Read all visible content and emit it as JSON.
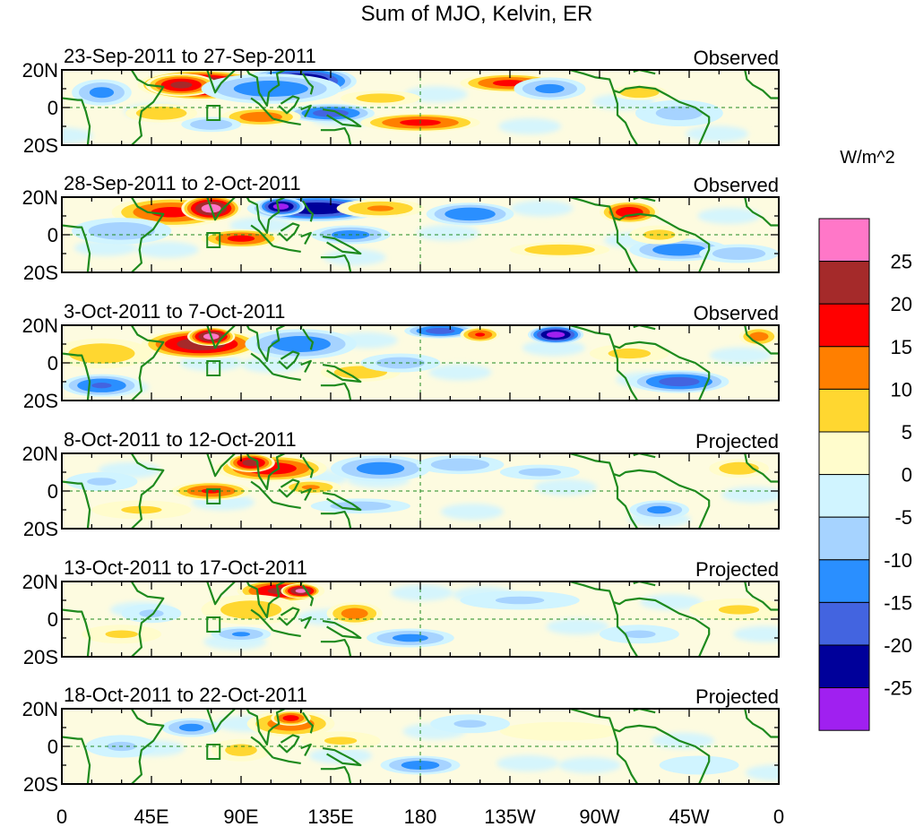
{
  "title": "Sum of MJO, Kelvin, ER",
  "panels": [
    {
      "date_range": "23-Sep-2011 to 27-Sep-2011",
      "status": "Observed"
    },
    {
      "date_range": "28-Sep-2011 to 2-Oct-2011",
      "status": "Observed"
    },
    {
      "date_range": "3-Oct-2011 to 7-Oct-2011",
      "status": "Observed"
    },
    {
      "date_range": "8-Oct-2011 to 12-Oct-2011",
      "status": "Projected"
    },
    {
      "date_range": "13-Oct-2011 to 17-Oct-2011",
      "status": "Projected"
    },
    {
      "date_range": "18-Oct-2011 to 22-Oct-2011",
      "status": "Projected"
    }
  ],
  "lat_labels": [
    "20N",
    "0",
    "20S"
  ],
  "lon_labels": [
    "0",
    "45E",
    "90E",
    "135E",
    "180",
    "135W",
    "90W",
    "45W",
    "0"
  ],
  "colorbar": {
    "units": "W/m^2",
    "levels": [
      "25",
      "20",
      "15",
      "10",
      "5",
      "0",
      "-5",
      "-10",
      "-15",
      "-20",
      "-25"
    ],
    "colors": [
      "#ff77c8",
      "#a52a2a",
      "#ff0000",
      "#ff7f00",
      "#ffd730",
      "#fffccc",
      "#d0f4ff",
      "#a6d3ff",
      "#2a8fff",
      "#4364e0",
      "#00009a",
      "#a020f0"
    ]
  },
  "map_colors": {
    "coast": "#1e8a1e",
    "frame": "#000000"
  },
  "anomalies": [
    [
      {
        "lon": 70,
        "lat": 12,
        "rx": 32,
        "ry": 8,
        "v": 28
      },
      {
        "lon": 60,
        "lat": 12,
        "rx": 18,
        "ry": 6,
        "v": 22
      },
      {
        "lon": 120,
        "lat": 14,
        "rx": 28,
        "ry": 8,
        "v": -27
      },
      {
        "lon": 105,
        "lat": 10,
        "rx": 35,
        "ry": 8,
        "v": -14
      },
      {
        "lon": 135,
        "lat": -3,
        "rx": 22,
        "ry": 5,
        "v": -18
      },
      {
        "lon": 180,
        "lat": -8,
        "rx": 30,
        "ry": 5,
        "v": 17
      },
      {
        "lon": 225,
        "lat": 13,
        "rx": 25,
        "ry": 5,
        "v": 17
      },
      {
        "lon": 245,
        "lat": 10,
        "rx": 18,
        "ry": 6,
        "v": -12
      },
      {
        "lon": 290,
        "lat": 8,
        "rx": 14,
        "ry": 4,
        "v": 10
      },
      {
        "lon": 50,
        "lat": -3,
        "rx": 18,
        "ry": 5,
        "v": 10
      },
      {
        "lon": 20,
        "lat": 8,
        "rx": 15,
        "ry": 7,
        "v": -12
      },
      {
        "lon": 100,
        "lat": -5,
        "rx": 20,
        "ry": 5,
        "v": 14
      },
      {
        "lon": 75,
        "lat": -9,
        "rx": 15,
        "ry": 4,
        "v": -10
      },
      {
        "lon": 310,
        "lat": -3,
        "rx": 22,
        "ry": 7,
        "v": -7
      },
      {
        "lon": 160,
        "lat": 5,
        "rx": 20,
        "ry": 4,
        "v": 8
      }
    ],
    [
      {
        "lon": 55,
        "lat": 12,
        "rx": 30,
        "ry": 8,
        "v": 17
      },
      {
        "lon": 75,
        "lat": 14,
        "rx": 15,
        "ry": 7,
        "v": 28
      },
      {
        "lon": 128,
        "lat": 14,
        "rx": 35,
        "ry": 7,
        "v": -25
      },
      {
        "lon": 110,
        "lat": 15,
        "rx": 12,
        "ry": 5,
        "v": -28
      },
      {
        "lon": 160,
        "lat": 14,
        "rx": 22,
        "ry": 5,
        "v": 11
      },
      {
        "lon": 205,
        "lat": 11,
        "rx": 22,
        "ry": 6,
        "v": -15
      },
      {
        "lon": 285,
        "lat": 12,
        "rx": 15,
        "ry": 6,
        "v": 19
      },
      {
        "lon": 250,
        "lat": -8,
        "rx": 25,
        "ry": 4,
        "v": 10
      },
      {
        "lon": 90,
        "lat": -2,
        "rx": 20,
        "ry": 5,
        "v": 17
      },
      {
        "lon": 145,
        "lat": 0,
        "rx": 20,
        "ry": 5,
        "v": -13
      },
      {
        "lon": 30,
        "lat": 2,
        "rx": 25,
        "ry": 7,
        "v": -9
      },
      {
        "lon": 310,
        "lat": -8,
        "rx": 25,
        "ry": 6,
        "v": -14
      },
      {
        "lon": 340,
        "lat": -10,
        "rx": 20,
        "ry": 5,
        "v": -9
      },
      {
        "lon": 300,
        "lat": 0,
        "rx": 15,
        "ry": 5,
        "v": 7
      }
    ],
    [
      {
        "lon": 70,
        "lat": 10,
        "rx": 30,
        "ry": 8,
        "v": 24
      },
      {
        "lon": 75,
        "lat": 14,
        "rx": 12,
        "ry": 5,
        "v": 28
      },
      {
        "lon": 120,
        "lat": 10,
        "rx": 28,
        "ry": 8,
        "v": -14
      },
      {
        "lon": 190,
        "lat": 17,
        "rx": 18,
        "ry": 4,
        "v": -18
      },
      {
        "lon": 248,
        "lat": 15,
        "rx": 14,
        "ry": 5,
        "v": -28
      },
      {
        "lon": 210,
        "lat": 15,
        "rx": 10,
        "ry": 4,
        "v": 16
      },
      {
        "lon": 20,
        "lat": 5,
        "rx": 25,
        "ry": 8,
        "v": 9
      },
      {
        "lon": 20,
        "lat": -12,
        "rx": 20,
        "ry": 6,
        "v": -16
      },
      {
        "lon": 150,
        "lat": -5,
        "rx": 20,
        "ry": 5,
        "v": 9
      },
      {
        "lon": 310,
        "lat": -10,
        "rx": 25,
        "ry": 6,
        "v": -18
      },
      {
        "lon": 170,
        "lat": 0,
        "rx": 20,
        "ry": 5,
        "v": -8
      },
      {
        "lon": 350,
        "lat": 14,
        "rx": 10,
        "ry": 5,
        "v": 13
      },
      {
        "lon": 285,
        "lat": 5,
        "rx": 20,
        "ry": 5,
        "v": 7
      }
    ],
    [
      {
        "lon": 105,
        "lat": 12,
        "rx": 28,
        "ry": 7,
        "v": 19
      },
      {
        "lon": 95,
        "lat": 15,
        "rx": 12,
        "ry": 5,
        "v": 23
      },
      {
        "lon": 75,
        "lat": 0,
        "rx": 20,
        "ry": 5,
        "v": 16
      },
      {
        "lon": 125,
        "lat": 2,
        "rx": 15,
        "ry": 4,
        "v": 11
      },
      {
        "lon": 160,
        "lat": 12,
        "rx": 25,
        "ry": 7,
        "v": -13
      },
      {
        "lon": 200,
        "lat": 14,
        "rx": 22,
        "ry": 5,
        "v": -9
      },
      {
        "lon": 240,
        "lat": 10,
        "rx": 20,
        "ry": 4,
        "v": -7
      },
      {
        "lon": 300,
        "lat": -10,
        "rx": 15,
        "ry": 5,
        "v": -12
      },
      {
        "lon": 340,
        "lat": 12,
        "rx": 15,
        "ry": 5,
        "v": 9
      },
      {
        "lon": 40,
        "lat": -10,
        "rx": 25,
        "ry": 5,
        "v": 6
      },
      {
        "lon": 150,
        "lat": -8,
        "rx": 25,
        "ry": 4,
        "v": -8
      },
      {
        "lon": 20,
        "lat": 5,
        "rx": 18,
        "ry": 5,
        "v": -6
      }
    ],
    [
      {
        "lon": 110,
        "lat": 15,
        "rx": 22,
        "ry": 6,
        "v": 22
      },
      {
        "lon": 120,
        "lat": 15,
        "rx": 10,
        "ry": 4,
        "v": 27
      },
      {
        "lon": 147,
        "lat": 3,
        "rx": 14,
        "ry": 6,
        "v": 13
      },
      {
        "lon": 95,
        "lat": 5,
        "rx": 25,
        "ry": 8,
        "v": 8
      },
      {
        "lon": 90,
        "lat": -8,
        "rx": 15,
        "ry": 4,
        "v": -11
      },
      {
        "lon": 175,
        "lat": -10,
        "rx": 22,
        "ry": 5,
        "v": -12
      },
      {
        "lon": 30,
        "lat": -8,
        "rx": 20,
        "ry": 5,
        "v": 6
      },
      {
        "lon": 45,
        "lat": 3,
        "rx": 15,
        "ry": 5,
        "v": -6
      },
      {
        "lon": 230,
        "lat": 10,
        "rx": 30,
        "ry": 5,
        "v": -6
      },
      {
        "lon": 340,
        "lat": 5,
        "rx": 25,
        "ry": 6,
        "v": 6
      },
      {
        "lon": 290,
        "lat": -8,
        "rx": 20,
        "ry": 5,
        "v": -6
      }
    ],
    [
      {
        "lon": 115,
        "lat": 12,
        "rx": 22,
        "ry": 7,
        "v": 14
      },
      {
        "lon": 115,
        "lat": 15,
        "rx": 10,
        "ry": 4,
        "v": 18
      },
      {
        "lon": 65,
        "lat": 10,
        "rx": 15,
        "ry": 5,
        "v": -12
      },
      {
        "lon": 90,
        "lat": -2,
        "rx": 15,
        "ry": 6,
        "v": 7
      },
      {
        "lon": 180,
        "lat": -10,
        "rx": 20,
        "ry": 5,
        "v": -13
      },
      {
        "lon": 30,
        "lat": 0,
        "rx": 18,
        "ry": 6,
        "v": -6
      },
      {
        "lon": 140,
        "lat": 3,
        "rx": 20,
        "ry": 5,
        "v": 6
      },
      {
        "lon": 250,
        "lat": 8,
        "rx": 30,
        "ry": 5,
        "v": 5
      },
      {
        "lon": 320,
        "lat": -10,
        "rx": 20,
        "ry": 5,
        "v": -5
      },
      {
        "lon": 205,
        "lat": 12,
        "rx": 20,
        "ry": 5,
        "v": -6
      }
    ]
  ]
}
